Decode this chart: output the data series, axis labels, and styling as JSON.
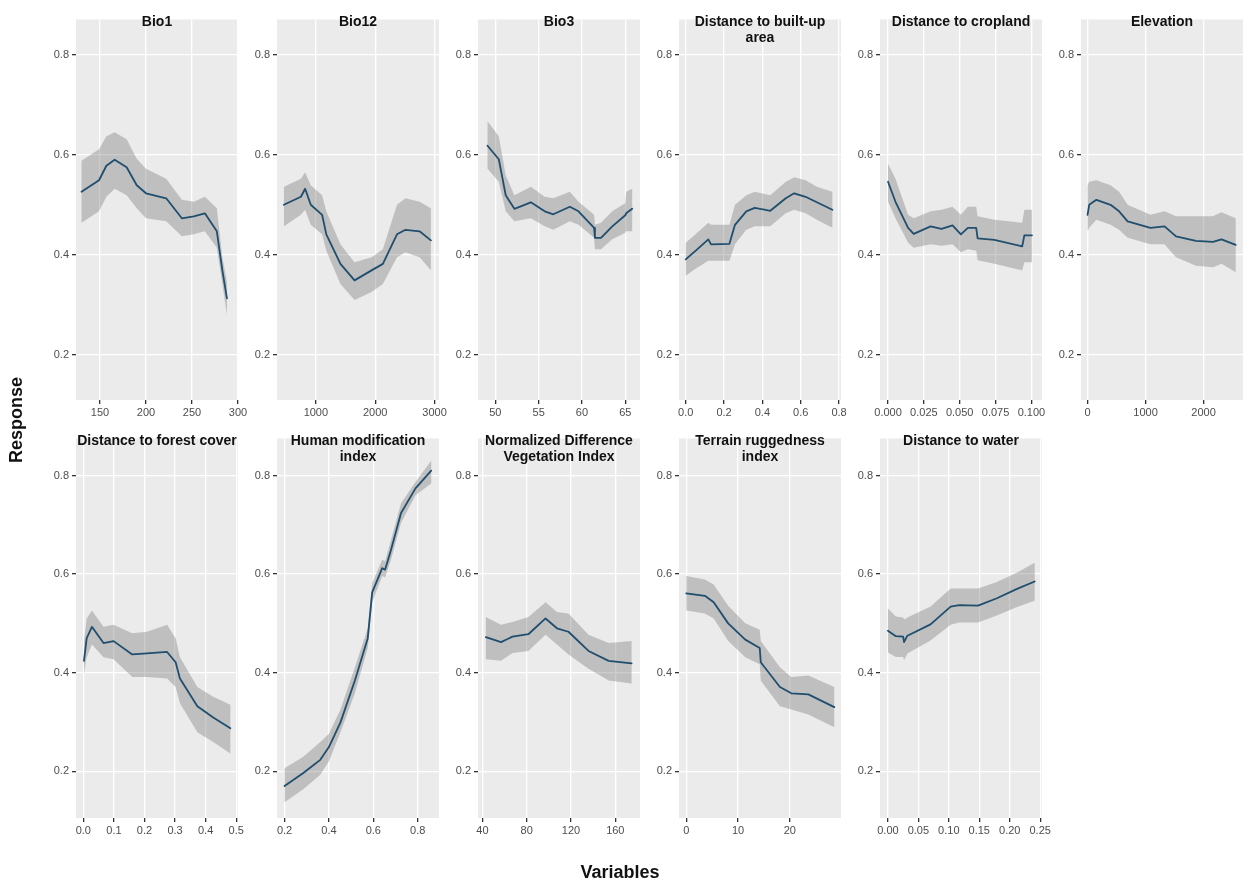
{
  "chart_data": [
    {
      "type": "line",
      "title": "Bio1",
      "ylabel": "Response",
      "xlim": [
        124,
        300
      ],
      "xticks": [
        150,
        200,
        250,
        300
      ],
      "ylim": [
        0.11,
        0.87
      ],
      "yticks": [
        0.2,
        0.4,
        0.6,
        0.8
      ],
      "grid": true,
      "x": [
        130,
        149,
        157,
        166,
        179,
        190,
        200,
        222,
        239,
        252,
        264,
        277,
        283,
        288
      ],
      "series": [
        {
          "color": "#1f4e6e",
          "values": [
            0.526,
            0.549,
            0.578,
            0.59,
            0.575,
            0.539,
            0.523,
            0.513,
            0.473,
            0.477,
            0.483,
            0.447,
            0.369,
            0.313
          ],
          "lower": [
            0.464,
            0.487,
            0.516,
            0.532,
            0.519,
            0.493,
            0.473,
            0.467,
            0.437,
            0.441,
            0.447,
            0.414,
            0.342,
            0.28
          ],
          "upper": [
            0.588,
            0.611,
            0.637,
            0.645,
            0.631,
            0.592,
            0.572,
            0.552,
            0.51,
            0.506,
            0.516,
            0.493,
            0.395,
            0.346
          ]
        }
      ]
    },
    {
      "type": "line",
      "title": "Bio12",
      "xlim": [
        345,
        3075
      ],
      "xticks": [
        1000,
        2000,
        3000
      ],
      "ylim": [
        0.11,
        0.87
      ],
      "yticks": [
        0.2,
        0.4,
        0.6,
        0.8
      ],
      "grid": true,
      "x": [
        462,
        748,
        819,
        914,
        1105,
        1176,
        1414,
        1652,
        1938,
        2129,
        2367,
        2510,
        2748,
        2938
      ],
      "series": [
        {
          "color": "#1f4e6e",
          "values": [
            0.5,
            0.516,
            0.532,
            0.5,
            0.48,
            0.441,
            0.382,
            0.349,
            0.369,
            0.382,
            0.441,
            0.45,
            0.447,
            0.429
          ],
          "lower": [
            0.457,
            0.48,
            0.49,
            0.46,
            0.441,
            0.408,
            0.342,
            0.31,
            0.326,
            0.342,
            0.395,
            0.405,
            0.395,
            0.369
          ],
          "upper": [
            0.536,
            0.552,
            0.565,
            0.539,
            0.519,
            0.487,
            0.421,
            0.385,
            0.395,
            0.411,
            0.5,
            0.513,
            0.506,
            0.493
          ]
        }
      ]
    },
    {
      "type": "line",
      "title": "Bio3",
      "xlim": [
        48,
        66.7
      ],
      "xticks": [
        50,
        55,
        60,
        65
      ],
      "ylim": [
        0.11,
        0.87
      ],
      "yticks": [
        0.2,
        0.4,
        0.6,
        0.8
      ],
      "grid": true,
      "x": [
        49.1,
        50.4,
        51.2,
        52.2,
        54.1,
        55.7,
        56.7,
        58.6,
        59.6,
        61.4,
        61.5,
        62.2,
        63.5,
        65.0,
        65.1,
        65.8
      ],
      "series": [
        {
          "color": "#1f4e6e",
          "values": [
            0.618,
            0.591,
            0.519,
            0.492,
            0.505,
            0.487,
            0.481,
            0.496,
            0.487,
            0.454,
            0.434,
            0.434,
            0.457,
            0.479,
            0.483,
            0.492
          ],
          "lower": [
            0.572,
            0.546,
            0.487,
            0.467,
            0.473,
            0.457,
            0.45,
            0.467,
            0.46,
            0.434,
            0.411,
            0.411,
            0.431,
            0.444,
            0.447,
            0.447
          ],
          "upper": [
            0.667,
            0.637,
            0.559,
            0.519,
            0.536,
            0.516,
            0.513,
            0.526,
            0.506,
            0.48,
            0.46,
            0.464,
            0.487,
            0.503,
            0.526,
            0.532
          ]
        }
      ]
    },
    {
      "type": "line",
      "title": "Distance to built-up area",
      "xlim": [
        -0.035,
        0.81
      ],
      "xticks": [
        {
          "value": 0,
          "label": "0.0"
        },
        0.2,
        0.4,
        0.6,
        0.8
      ],
      "ylim": [
        0.11,
        0.87
      ],
      "yticks": [
        0.2,
        0.4,
        0.6,
        0.8
      ],
      "grid": true,
      "x": [
        0,
        0.051,
        0.118,
        0.132,
        0.228,
        0.257,
        0.316,
        0.36,
        0.441,
        0.522,
        0.566,
        0.625,
        0.684,
        0.765
      ],
      "series": [
        {
          "color": "#1f4e6e",
          "values": [
            0.391,
            0.408,
            0.431,
            0.421,
            0.422,
            0.46,
            0.487,
            0.494,
            0.488,
            0.513,
            0.523,
            0.516,
            0.505,
            0.49
          ],
          "lower": [
            0.358,
            0.372,
            0.388,
            0.388,
            0.388,
            0.421,
            0.45,
            0.457,
            0.457,
            0.483,
            0.49,
            0.483,
            0.47,
            0.454
          ],
          "upper": [
            0.424,
            0.441,
            0.464,
            0.46,
            0.46,
            0.5,
            0.519,
            0.526,
            0.519,
            0.546,
            0.555,
            0.549,
            0.536,
            0.526
          ]
        }
      ]
    },
    {
      "type": "line",
      "title": "Distance to cropland",
      "xlim": [
        -0.0056,
        0.1074
      ],
      "xticks": [
        {
          "value": 0,
          "label": "0.000"
        },
        {
          "value": 0.025,
          "label": "0.025"
        },
        {
          "value": 0.05,
          "label": "0.050"
        },
        {
          "value": 0.075,
          "label": "0.075"
        },
        {
          "value": 0.1,
          "label": "0.100"
        }
      ],
      "ylim": [
        0.11,
        0.87
      ],
      "yticks": [
        0.2,
        0.4,
        0.6,
        0.8
      ],
      "grid": true,
      "x": [
        0,
        0.0052,
        0.014,
        0.0179,
        0.0297,
        0.0373,
        0.045,
        0.0508,
        0.0557,
        0.0615,
        0.0625,
        0.0742,
        0.0936,
        0.0951,
        0.1004
      ],
      "series": [
        {
          "color": "#1f4e6e",
          "values": [
            0.546,
            0.506,
            0.454,
            0.442,
            0.457,
            0.452,
            0.459,
            0.441,
            0.454,
            0.454,
            0.433,
            0.43,
            0.417,
            0.439,
            0.439
          ],
          "lower": [
            0.506,
            0.473,
            0.424,
            0.414,
            0.421,
            0.418,
            0.421,
            0.405,
            0.411,
            0.408,
            0.389,
            0.382,
            0.369,
            0.385,
            0.385
          ],
          "upper": [
            0.582,
            0.552,
            0.48,
            0.473,
            0.487,
            0.49,
            0.496,
            0.48,
            0.496,
            0.496,
            0.477,
            0.47,
            0.464,
            0.49,
            0.49
          ]
        }
      ]
    },
    {
      "type": "line",
      "title": "Elevation",
      "xlim": [
        -113,
        2680
      ],
      "xticks": [
        0,
        1000,
        2000
      ],
      "ylim": [
        0.11,
        0.87
      ],
      "yticks": [
        0.2,
        0.4,
        0.6,
        0.8
      ],
      "grid": true,
      "x": [
        0,
        29,
        152,
        397,
        544,
        691,
        1083,
        1328,
        1525,
        1868,
        2162,
        2309,
        2554
      ],
      "series": [
        {
          "color": "#1f4e6e",
          "values": [
            0.48,
            0.5,
            0.51,
            0.5,
            0.487,
            0.467,
            0.454,
            0.457,
            0.437,
            0.428,
            0.426,
            0.431,
            0.42
          ],
          "lower": [
            0.447,
            0.454,
            0.47,
            0.46,
            0.45,
            0.434,
            0.421,
            0.421,
            0.395,
            0.378,
            0.375,
            0.382,
            0.365
          ],
          "upper": [
            0.539,
            0.546,
            0.549,
            0.539,
            0.526,
            0.5,
            0.48,
            0.487,
            0.477,
            0.477,
            0.477,
            0.485,
            0.473
          ]
        }
      ]
    },
    {
      "type": "line",
      "title": "Distance to forest cover",
      "xlim": [
        -0.024,
        0.506
      ],
      "xticks": [
        {
          "value": 0,
          "label": "0.0"
        },
        0.1,
        0.2,
        0.3,
        0.4,
        0.5
      ],
      "ylim": [
        0.105,
        0.875
      ],
      "yticks": [
        0.2,
        0.4,
        0.6,
        0.8
      ],
      "grid": true,
      "x": [
        0.002,
        0.011,
        0.028,
        0.066,
        0.099,
        0.16,
        0.208,
        0.274,
        0.302,
        0.316,
        0.373,
        0.425,
        0.481
      ],
      "series": [
        {
          "color": "#1f4e6e",
          "values": [
            0.424,
            0.47,
            0.493,
            0.46,
            0.464,
            0.437,
            0.439,
            0.442,
            0.421,
            0.388,
            0.332,
            0.309,
            0.287
          ],
          "lower": [
            0.398,
            0.431,
            0.457,
            0.431,
            0.427,
            0.391,
            0.391,
            0.388,
            0.371,
            0.338,
            0.279,
            0.259,
            0.236
          ],
          "upper": [
            0.464,
            0.51,
            0.526,
            0.493,
            0.497,
            0.48,
            0.483,
            0.497,
            0.47,
            0.431,
            0.371,
            0.351,
            0.335
          ]
        }
      ]
    },
    {
      "type": "line",
      "title": "Human modification index",
      "xlim": [
        0.166,
        0.896
      ],
      "xticks": [
        0.2,
        0.4,
        0.6,
        0.8
      ],
      "ylim": [
        0.105,
        0.875
      ],
      "yticks": [
        0.2,
        0.4,
        0.6,
        0.8
      ],
      "grid": true,
      "x": [
        0.2,
        0.283,
        0.361,
        0.4,
        0.452,
        0.517,
        0.575,
        0.595,
        0.64,
        0.653,
        0.679,
        0.725,
        0.79,
        0.861
      ],
      "series": [
        {
          "color": "#1f4e6e",
          "values": [
            0.17,
            0.196,
            0.223,
            0.249,
            0.299,
            0.384,
            0.47,
            0.563,
            0.612,
            0.609,
            0.648,
            0.724,
            0.774,
            0.81
          ],
          "lower": [
            0.137,
            0.163,
            0.193,
            0.22,
            0.279,
            0.358,
            0.45,
            0.543,
            0.596,
            0.593,
            0.628,
            0.704,
            0.76,
            0.784
          ],
          "upper": [
            0.206,
            0.229,
            0.259,
            0.276,
            0.325,
            0.411,
            0.49,
            0.582,
            0.629,
            0.626,
            0.668,
            0.744,
            0.787,
            0.83
          ]
        }
      ]
    },
    {
      "type": "line",
      "title": "Normalized Difference Vegetation Index",
      "xlabel": "Variables",
      "xlim": [
        36,
        182.3
      ],
      "xticks": [
        40,
        80,
        120,
        160
      ],
      "ylim": [
        0.105,
        0.875
      ],
      "yticks": [
        0.2,
        0.4,
        0.6,
        0.8
      ],
      "grid": true,
      "x": [
        43.1,
        56.8,
        67.2,
        81.5,
        97.0,
        107.3,
        117.7,
        135.8,
        154.0,
        174.7
      ],
      "series": [
        {
          "color": "#1f4e6e",
          "values": [
            0.472,
            0.462,
            0.473,
            0.478,
            0.51,
            0.49,
            0.483,
            0.444,
            0.424,
            0.419
          ],
          "lower": [
            0.427,
            0.424,
            0.44,
            0.444,
            0.477,
            0.457,
            0.437,
            0.408,
            0.384,
            0.378
          ],
          "upper": [
            0.513,
            0.497,
            0.503,
            0.513,
            0.543,
            0.523,
            0.52,
            0.477,
            0.46,
            0.464
          ]
        }
      ]
    },
    {
      "type": "line",
      "title": "Terrain ruggedness index",
      "xlim": [
        -1.4,
        29.9
      ],
      "xticks": [
        0,
        10,
        20
      ],
      "ylim": [
        0.105,
        0.875
      ],
      "yticks": [
        0.2,
        0.4,
        0.6,
        0.8
      ],
      "grid": true,
      "x": [
        0,
        3.6,
        5.3,
        8.1,
        11.4,
        14.2,
        14.4,
        18.1,
        20.3,
        23.6,
        28.6
      ],
      "series": [
        {
          "color": "#1f4e6e",
          "values": [
            0.561,
            0.556,
            0.543,
            0.5,
            0.467,
            0.45,
            0.421,
            0.371,
            0.358,
            0.356,
            0.33
          ],
          "lower": [
            0.526,
            0.52,
            0.51,
            0.464,
            0.431,
            0.417,
            0.384,
            0.332,
            0.325,
            0.315,
            0.289
          ],
          "upper": [
            0.596,
            0.589,
            0.579,
            0.536,
            0.5,
            0.487,
            0.464,
            0.411,
            0.391,
            0.394,
            0.371
          ]
        }
      ]
    },
    {
      "type": "line",
      "title": "Distance to water",
      "xlim": [
        -0.013,
        0.253
      ],
      "xticks": [
        {
          "value": 0,
          "label": "0.00"
        },
        {
          "value": 0.05,
          "label": "0.05"
        },
        {
          "value": 0.1,
          "label": "0.10"
        },
        {
          "value": 0.15,
          "label": "0.15"
        },
        {
          "value": 0.2,
          "label": "0.20"
        },
        {
          "value": 0.25,
          "label": "0.25"
        }
      ],
      "ylim": [
        0.105,
        0.875
      ],
      "yticks": [
        0.2,
        0.4,
        0.6,
        0.8
      ],
      "grid": true,
      "x": [
        0,
        0.013,
        0.025,
        0.0265,
        0.032,
        0.07,
        0.103,
        0.117,
        0.148,
        0.179,
        0.212,
        0.241
      ],
      "series": [
        {
          "color": "#1f4e6e",
          "values": [
            0.485,
            0.474,
            0.473,
            0.462,
            0.475,
            0.498,
            0.534,
            0.537,
            0.536,
            0.551,
            0.57,
            0.585
          ],
          "lower": [
            0.441,
            0.432,
            0.432,
            0.425,
            0.439,
            0.465,
            0.497,
            0.502,
            0.502,
            0.516,
            0.533,
            0.546
          ],
          "upper": [
            0.53,
            0.514,
            0.512,
            0.508,
            0.512,
            0.534,
            0.571,
            0.571,
            0.571,
            0.584,
            0.603,
            0.623
          ]
        }
      ]
    }
  ]
}
